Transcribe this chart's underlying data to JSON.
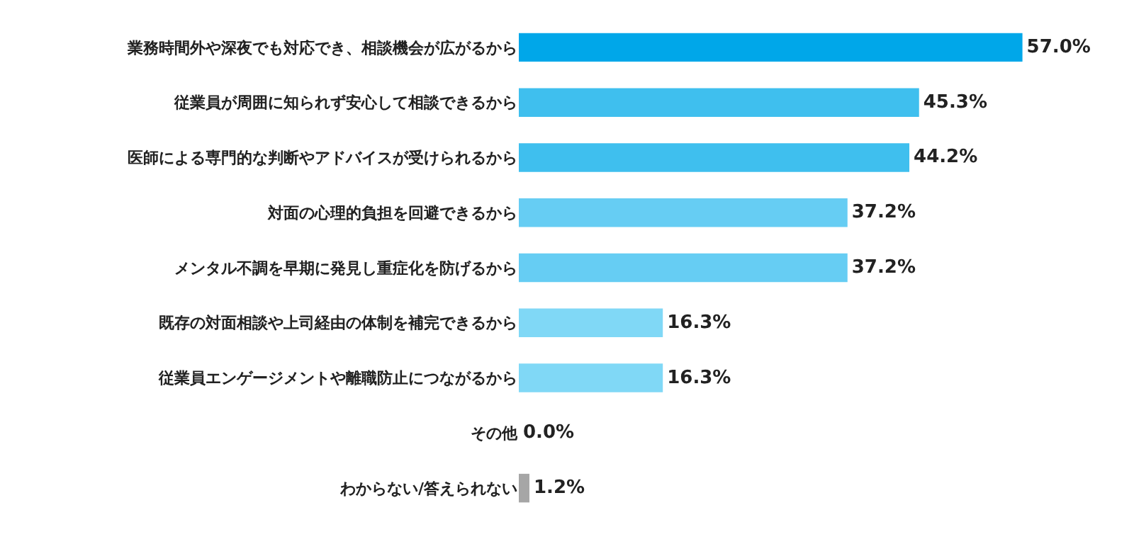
{
  "chart_data": {
    "type": "bar",
    "orientation": "horizontal",
    "categories": [
      "業務時間外や深夜でも対応でき、相談機会が広がるから",
      "従業員が周囲に知られず安心して相談できるから",
      "医師による専門的な判断やアドバイスが受けられるから",
      "対面の心理的負担を回避できるから",
      "メンタル不調を早期に発見し重症化を防げるから",
      "既存の対面相談や上司経由の体制を補完できるから",
      "従業員エンゲージメントや離職防止につながるから",
      "その他",
      "わからない/答えられない"
    ],
    "values": [
      57.0,
      45.3,
      44.2,
      37.2,
      37.2,
      16.3,
      16.3,
      0.0,
      1.2
    ],
    "value_labels": [
      "57.0%",
      "45.3%",
      "44.2%",
      "37.2%",
      "37.2%",
      "16.3%",
      "16.3%",
      "0.0%",
      "1.2%"
    ],
    "colors": [
      "#00a7e9",
      "#3fbfee",
      "#3fbfee",
      "#66cdf3",
      "#66cdf3",
      "#80d8f6",
      "#80d8f6",
      "#80d8f6",
      "#a6a6a6"
    ],
    "tick_labels": "y"
  }
}
